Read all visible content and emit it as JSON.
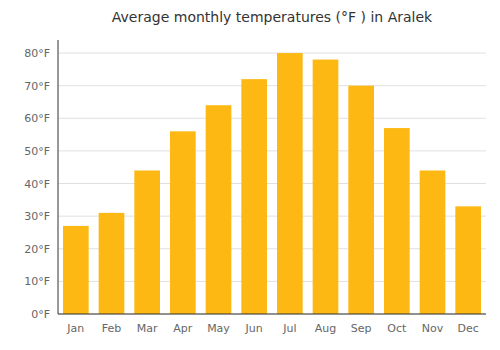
{
  "chart_data": {
    "type": "bar",
    "title": "Average monthly temperatures (°F ) in Aralek",
    "categories": [
      "Jan",
      "Feb",
      "Mar",
      "Apr",
      "May",
      "Jun",
      "Jul",
      "Aug",
      "Sep",
      "Oct",
      "Nov",
      "Dec"
    ],
    "values": [
      27,
      31,
      44,
      56,
      64,
      72,
      80,
      78,
      70,
      57,
      44,
      33
    ],
    "color": "#FDB813",
    "ylim": [
      0,
      84
    ],
    "yticks": [
      {
        "value": 0,
        "label": "0°F"
      },
      {
        "value": 10,
        "label": "10°F"
      },
      {
        "value": 20,
        "label": "20°F"
      },
      {
        "value": 30,
        "label": "30°F"
      },
      {
        "value": 40,
        "label": "40°F"
      },
      {
        "value": 50,
        "label": "50°F"
      },
      {
        "value": 60,
        "label": "60°F"
      },
      {
        "value": 70,
        "label": "70°F"
      },
      {
        "value": 80,
        "label": "80°F"
      }
    ],
    "grid": true
  }
}
